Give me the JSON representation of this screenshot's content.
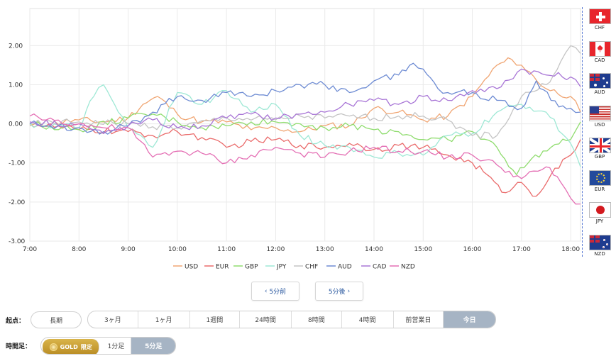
{
  "chart_data": {
    "type": "line",
    "title": "",
    "xlabel": "",
    "ylabel": "",
    "x_ticks": [
      "7:00",
      "8:00",
      "9:00",
      "10:00",
      "11:00",
      "12:00",
      "13:00",
      "14:00",
      "15:00",
      "16:00",
      "17:00",
      "18:00"
    ],
    "x_range": [
      7.0,
      18.2
    ],
    "y_ticks": [
      "2.00",
      "1.00",
      "0.00",
      "-1.00",
      "-2.00",
      "-3.00"
    ],
    "y_tick_values": [
      2,
      1,
      0,
      -1,
      -2,
      -3
    ],
    "ylim": [
      -3.0,
      2.95
    ],
    "grid": true,
    "legend_position": "bottom",
    "series": [
      {
        "name": "USD",
        "color": "#f0a572",
        "x": [
          7,
          8,
          8.5,
          9,
          9.3,
          9.6,
          10,
          10.5,
          11,
          11.5,
          12,
          12.5,
          13,
          13.5,
          14,
          14.5,
          15,
          15.5,
          16,
          16.5,
          16.8,
          17,
          17.5,
          18,
          18.2
        ],
        "y": [
          -0.05,
          0.1,
          0.05,
          0.15,
          0.5,
          0.7,
          0.25,
          0.05,
          0.05,
          -0.15,
          -0.1,
          -0.2,
          -0.05,
          -0.05,
          0.4,
          0.3,
          0.1,
          0.2,
          0.7,
          1.5,
          1.65,
          1.5,
          0.9,
          0.7,
          0.3
        ]
      },
      {
        "name": "EUR",
        "color": "#ea6b6b",
        "x": [
          7,
          8,
          9,
          9.5,
          10,
          10.5,
          11,
          11.5,
          12,
          12.5,
          13,
          13.5,
          14,
          14.5,
          15,
          15.5,
          16,
          16.3,
          16.6,
          17,
          17.3,
          17.6,
          18,
          18.2
        ],
        "y": [
          0,
          -0.15,
          -0.2,
          -0.3,
          -0.2,
          -0.35,
          -0.6,
          -0.45,
          -0.4,
          -0.55,
          -0.6,
          -0.5,
          -0.65,
          -0.55,
          -0.6,
          -0.8,
          -1.0,
          -1.3,
          -1.75,
          -1.5,
          -1.85,
          -1.3,
          -0.8,
          -0.4
        ]
      },
      {
        "name": "GBP",
        "color": "#8fdc6e",
        "x": [
          7,
          8,
          9,
          9.5,
          10,
          10.5,
          11,
          11.5,
          12,
          12.5,
          13,
          13.5,
          14,
          14.5,
          15,
          15.5,
          16,
          16.5,
          16.9,
          17.2,
          17.6,
          18,
          18.2
        ],
        "y": [
          0,
          -0.15,
          0.15,
          0.25,
          0.05,
          -0.1,
          -0.05,
          0.05,
          0.05,
          0.0,
          -0.1,
          -0.05,
          -0.15,
          -0.2,
          -0.4,
          -0.4,
          -0.2,
          -0.6,
          -1.3,
          -0.9,
          -0.6,
          -0.4,
          0.05
        ]
      },
      {
        "name": "JPY",
        "color": "#9ee8d5",
        "x": [
          7,
          8,
          8.3,
          8.5,
          8.8,
          9,
          9.5,
          10,
          10.5,
          11,
          11.5,
          12,
          12.5,
          13,
          13.5,
          14,
          14.5,
          15,
          15.5,
          16,
          16.5,
          17,
          17.5,
          18,
          18.2
        ],
        "y": [
          0,
          -0.1,
          0.7,
          1.0,
          0.3,
          -0.1,
          -0.6,
          0.8,
          0.5,
          0.85,
          0.3,
          0.5,
          -0.3,
          -0.55,
          -0.6,
          -0.85,
          -0.75,
          -0.8,
          -0.3,
          -0.25,
          0.3,
          0.5,
          0.3,
          -0.5,
          -1.1
        ]
      },
      {
        "name": "CHF",
        "color": "#c4c4c4",
        "x": [
          7,
          8,
          9,
          10,
          11,
          12,
          12.5,
          13,
          13.5,
          14,
          14.5,
          15,
          15.5,
          16,
          16.5,
          17,
          17.5,
          17.8,
          18,
          18.2
        ],
        "y": [
          0,
          0.05,
          0.0,
          -0.1,
          0.15,
          0.1,
          0.2,
          0.15,
          0.2,
          0.15,
          0.2,
          0.2,
          0.1,
          -0.3,
          -0.3,
          0.7,
          1.0,
          1.6,
          2.0,
          1.8
        ]
      },
      {
        "name": "AUD",
        "color": "#6d8bd3",
        "x": [
          7,
          8,
          8.5,
          9,
          9.5,
          10,
          10.5,
          11,
          11.5,
          12,
          12.5,
          13,
          13.5,
          14,
          14.5,
          14.8,
          15,
          15.3,
          15.5,
          16,
          16.5,
          17,
          17.3,
          17.6,
          18,
          18.2
        ],
        "y": [
          0,
          -0.1,
          -0.2,
          -0.05,
          0.3,
          0.7,
          0.6,
          0.8,
          0.7,
          0.85,
          1.0,
          1.0,
          0.8,
          1.1,
          1.25,
          1.55,
          1.4,
          0.9,
          0.8,
          0.8,
          0.6,
          0.4,
          1.1,
          0.6,
          0.4,
          0.3
        ]
      },
      {
        "name": "CAD",
        "color": "#a875d6",
        "x": [
          7,
          8,
          8.5,
          9,
          9.5,
          10,
          10.5,
          11,
          11.5,
          12,
          12.5,
          13,
          13.5,
          14,
          14.5,
          15,
          15.5,
          16,
          16.5,
          17,
          17.5,
          18,
          18.2
        ],
        "y": [
          0.05,
          0.0,
          -0.25,
          -0.05,
          0.1,
          -0.1,
          -0.05,
          0.15,
          0.25,
          0.15,
          0.25,
          0.3,
          0.5,
          0.6,
          0.5,
          0.7,
          0.6,
          0.85,
          0.9,
          1.4,
          1.25,
          1.2,
          0.95
        ]
      },
      {
        "name": "NZD",
        "color": "#e46fb4",
        "x": [
          7,
          8,
          8.5,
          9,
          9.5,
          10,
          10.5,
          11,
          11.5,
          12,
          12.5,
          13,
          13.5,
          14,
          14.5,
          15,
          15.5,
          16,
          16.5,
          17,
          17.5,
          17.8,
          18,
          18.2
        ],
        "y": [
          0.2,
          0.0,
          -0.1,
          -0.1,
          -0.85,
          -0.7,
          -0.75,
          -1.0,
          -0.8,
          -0.6,
          -0.75,
          -0.85,
          -0.7,
          -0.6,
          -0.7,
          -0.7,
          -0.85,
          -0.8,
          -1.05,
          -1.4,
          -1.1,
          -1.5,
          -1.9,
          -2.05
        ]
      }
    ]
  },
  "flags": [
    {
      "code": "CHF",
      "icon": "swiss-flag-icon"
    },
    {
      "code": "CAD",
      "icon": "canada-flag-icon"
    },
    {
      "code": "AUD",
      "icon": "australia-flag-icon"
    },
    {
      "code": "USD",
      "icon": "us-flag-icon"
    },
    {
      "code": "GBP",
      "icon": "uk-flag-icon"
    },
    {
      "code": "EUR",
      "icon": "eu-flag-icon"
    },
    {
      "code": "JPY",
      "icon": "japan-flag-icon"
    },
    {
      "code": "NZD",
      "icon": "new-zealand-flag-icon"
    }
  ],
  "nav": {
    "prev_label": "5分前",
    "next_label": "5分後",
    "prev_icon": "chevron-left-icon",
    "next_icon": "chevron-right-icon"
  },
  "start_point": {
    "label": "起点：",
    "long_term": "長期",
    "options": [
      "3ヶ月",
      "1ヶ月",
      "1週間",
      "24時間",
      "8時間",
      "4時間",
      "前営業日",
      "今日"
    ],
    "active": "今日"
  },
  "timeframe": {
    "label": "時間足：",
    "gold_label": "GOLD",
    "gold_badge": "限定",
    "options": [
      "1分足",
      "5分足"
    ],
    "active": "5分足"
  }
}
